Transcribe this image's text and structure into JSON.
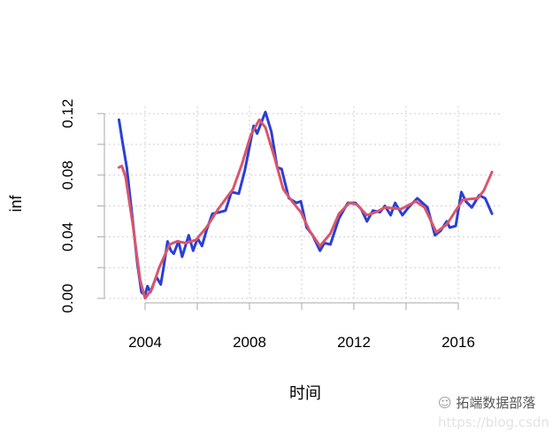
{
  "chart_data": {
    "type": "line",
    "title": "",
    "xlabel": "时间",
    "ylabel": "inf",
    "xlim": [
      2002.6,
      2017.7
    ],
    "ylim": [
      0.0,
      0.12
    ],
    "x_ticks": [
      2004,
      2006,
      2008,
      2010,
      2012,
      2014,
      2016
    ],
    "x_tick_labels": [
      "2004",
      "2008",
      "2012",
      "2016"
    ],
    "x_tick_label_values": [
      2004,
      2008,
      2012,
      2016
    ],
    "y_ticks": [
      0.0,
      0.02,
      0.04,
      0.06,
      0.08,
      0.1,
      0.12
    ],
    "y_tick_labels": [
      "0.00",
      "0.04",
      "0.08",
      "0.12"
    ],
    "y_tick_label_values": [
      0.0,
      0.04,
      0.08,
      0.12
    ],
    "grid": true,
    "series": [
      {
        "color": "#2a3fd6",
        "x": [
          2003.0,
          2003.13,
          2003.3,
          2003.53,
          2003.7,
          2003.86,
          2004.0,
          2004.09,
          2004.2,
          2004.43,
          2004.6,
          2004.71,
          2004.86,
          2004.99,
          2005.1,
          2005.28,
          2005.42,
          2005.67,
          2005.84,
          2006.01,
          2006.18,
          2006.35,
          2006.58,
          2006.86,
          2007.08,
          2007.31,
          2007.59,
          2007.82,
          2008.16,
          2008.29,
          2008.61,
          2008.84,
          2009.06,
          2009.23,
          2009.51,
          2009.8,
          2009.97,
          2010.19,
          2010.42,
          2010.7,
          2010.87,
          2011.1,
          2011.43,
          2011.77,
          2012.06,
          2012.28,
          2012.5,
          2012.73,
          2013.0,
          2013.19,
          2013.41,
          2013.58,
          2013.86,
          2014.09,
          2014.43,
          2014.82,
          2015.11,
          2015.33,
          2015.56,
          2015.67,
          2015.9,
          2016.12,
          2016.29,
          2016.52,
          2016.8,
          2017.03,
          2017.29
        ],
        "y": [
          0.116,
          0.102,
          0.085,
          0.05,
          0.023,
          0.004,
          0.002,
          0.008,
          0.004,
          0.014,
          0.009,
          0.02,
          0.037,
          0.031,
          0.029,
          0.037,
          0.027,
          0.041,
          0.031,
          0.039,
          0.034,
          0.044,
          0.055,
          0.056,
          0.057,
          0.069,
          0.068,
          0.083,
          0.112,
          0.107,
          0.121,
          0.108,
          0.085,
          0.084,
          0.065,
          0.062,
          0.063,
          0.046,
          0.041,
          0.031,
          0.036,
          0.035,
          0.052,
          0.062,
          0.062,
          0.058,
          0.05,
          0.057,
          0.056,
          0.06,
          0.054,
          0.062,
          0.054,
          0.059,
          0.065,
          0.059,
          0.041,
          0.044,
          0.05,
          0.046,
          0.047,
          0.069,
          0.063,
          0.059,
          0.067,
          0.065,
          0.055
        ]
      },
      {
        "color": "#d9566b",
        "x": [
          2003.0,
          2003.11,
          2003.25,
          2003.53,
          2003.81,
          2004.0,
          2004.26,
          2004.54,
          2004.94,
          2005.22,
          2005.56,
          2005.95,
          2006.35,
          2006.8,
          2007.37,
          2007.71,
          2008.05,
          2008.38,
          2008.61,
          2008.95,
          2009.29,
          2009.63,
          2009.97,
          2010.3,
          2010.7,
          2011.1,
          2011.43,
          2011.83,
          2012.11,
          2012.5,
          2012.85,
          2013.19,
          2013.81,
          2014.37,
          2014.71,
          2015.16,
          2015.56,
          2015.9,
          2016.18,
          2016.75,
          2016.98,
          2017.29
        ],
        "y": [
          0.085,
          0.086,
          0.079,
          0.048,
          0.012,
          0.0,
          0.006,
          0.02,
          0.035,
          0.037,
          0.036,
          0.038,
          0.046,
          0.058,
          0.071,
          0.087,
          0.106,
          0.116,
          0.111,
          0.092,
          0.071,
          0.063,
          0.056,
          0.044,
          0.034,
          0.042,
          0.055,
          0.062,
          0.061,
          0.054,
          0.056,
          0.059,
          0.058,
          0.063,
          0.059,
          0.043,
          0.048,
          0.057,
          0.064,
          0.065,
          0.07,
          0.082
        ]
      }
    ]
  },
  "watermark": {
    "brand": "拓端数据部落",
    "url": "https://blog.csdn"
  }
}
